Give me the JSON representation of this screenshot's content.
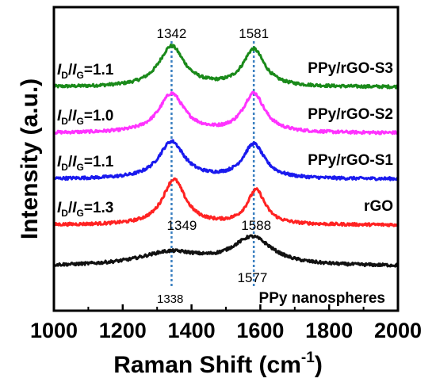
{
  "chart_data": {
    "type": "line",
    "xlabel": "Raman Shift (cm",
    "xlabel_sup": "-1",
    "xlabel_close": ")",
    "ylabel": "Intensity (a.u.)",
    "xlim": [
      1000,
      2000
    ],
    "xticks": [
      "1000",
      "1200",
      "1400",
      "1600",
      "1800",
      "2000"
    ],
    "y_ticks_shown": false,
    "series": [
      {
        "name": "PPy/rGO-S3",
        "color": "#1a8a1a",
        "offset": 4,
        "baseline": [
          0.0,
          0.0
        ],
        "peaks": [
          {
            "center": 1342,
            "height": 0.85,
            "width": 45
          },
          {
            "center": 1581,
            "height": 0.78,
            "width": 38
          }
        ],
        "ratio": {
          "I": "I",
          "D": "D",
          "G": "G",
          "value": "=1.1"
        }
      },
      {
        "name": "PPy/rGO-S2",
        "color": "#ff33ff",
        "offset": 3,
        "baseline": [
          0.0,
          0.0
        ],
        "peaks": [
          {
            "center": 1342,
            "height": 0.82,
            "width": 45
          },
          {
            "center": 1581,
            "height": 0.82,
            "width": 38
          }
        ],
        "ratio": {
          "I": "I",
          "D": "D",
          "G": "G",
          "value": "=1.0"
        }
      },
      {
        "name": "PPy/rGO-S1",
        "color": "#1a1aee",
        "offset": 2,
        "baseline": [
          0.0,
          0.0
        ],
        "peaks": [
          {
            "center": 1342,
            "height": 0.78,
            "width": 45
          },
          {
            "center": 1581,
            "height": 0.72,
            "width": 38
          }
        ],
        "ratio": {
          "I": "I",
          "D": "D",
          "G": "G",
          "value": "=1.1"
        }
      },
      {
        "name": "rGO",
        "color": "#ff2222",
        "offset": 1,
        "baseline": [
          0.0,
          0.0
        ],
        "peaks": [
          {
            "center": 1349,
            "height": 0.95,
            "width": 40
          },
          {
            "center": 1588,
            "height": 0.72,
            "width": 32
          }
        ],
        "ratio": {
          "I": "I",
          "D": "D",
          "G": "G",
          "value": "=1.3"
        }
      },
      {
        "name": "PPy nanospheres",
        "color": "#111111",
        "offset": 0,
        "baseline": [
          0.0,
          0.0
        ],
        "peaks": [
          {
            "center": 1338,
            "height": 0.28,
            "width": 110
          },
          {
            "center": 1577,
            "height": 0.58,
            "width": 70
          }
        ]
      }
    ],
    "peak_annotations": [
      {
        "text": "1342",
        "x": 1342,
        "level": "top"
      },
      {
        "text": "1581",
        "x": 1581,
        "level": "top"
      },
      {
        "text": "1349",
        "x": 1349,
        "level": "mid"
      },
      {
        "text": "1588",
        "x": 1588,
        "level": "mid"
      },
      {
        "text": "1577",
        "x": 1577,
        "level": "low"
      },
      {
        "text": "1338",
        "x": 1338,
        "level": "bottom"
      }
    ],
    "guide_lines": [
      1342,
      1581
    ],
    "guide_line_color": "#3a7fc0"
  }
}
